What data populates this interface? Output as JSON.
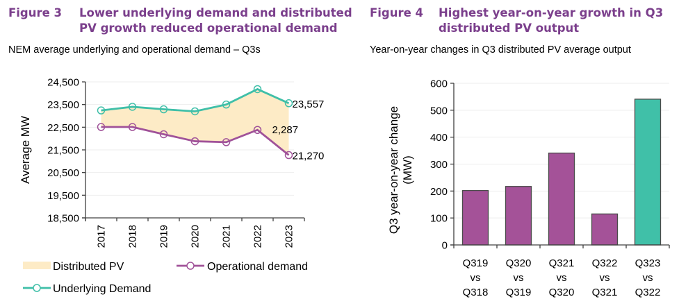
{
  "figures": [
    {
      "number": "Figure 3",
      "title": "Lower underlying demand and distributed PV growth reduced operational demand",
      "subtitle": "NEM average underlying and operational demand – Q3s"
    },
    {
      "number": "Figure 4",
      "title": "Highest year-on-year growth in Q3 distributed PV output",
      "subtitle": "Year-on-year changes in Q3 distributed PV average output"
    }
  ],
  "colors": {
    "title_purple": "#7b3f8c",
    "operational": "#a05299",
    "underlying": "#3fbfa8",
    "distributed_pv_fill": "#fdebc6",
    "bar_purple": "#a45298",
    "bar_teal": "#40c0a8",
    "axis": "#404040",
    "grid": "#eeeeee"
  },
  "chart_data": [
    {
      "type": "line",
      "title": "NEM average underlying and operational demand – Q3s",
      "xlabel": "",
      "ylabel": "Average MW",
      "x": [
        "2017",
        "2018",
        "2019",
        "2020",
        "2021",
        "2022",
        "2023"
      ],
      "ylim": [
        18500,
        24500
      ],
      "yticks": [
        18500,
        19500,
        20500,
        21500,
        22500,
        23500,
        24500
      ],
      "ytick_labels": [
        "18,500",
        "19,500",
        "20,500",
        "21,500",
        "22,500",
        "23,500",
        "24,500"
      ],
      "grid": true,
      "series": [
        {
          "name": "Underlying Demand",
          "values": [
            23240,
            23400,
            23290,
            23200,
            23500,
            24180,
            23557
          ]
        },
        {
          "name": "Operational demand",
          "values": [
            22510,
            22510,
            22190,
            21880,
            21840,
            22380,
            21270
          ]
        }
      ],
      "area": {
        "name": "Distributed PV",
        "between": [
          "Operational demand",
          "Underlying Demand"
        ]
      },
      "annotations": [
        {
          "text": "23,557",
          "target": "Underlying Demand 2023"
        },
        {
          "text": "2,287",
          "target": "Distributed PV 2023"
        },
        {
          "text": "21,270",
          "target": "Operational demand 2023"
        }
      ],
      "legend": {
        "placement": "bottom",
        "items": [
          "Distributed PV",
          "Operational demand",
          "Underlying Demand"
        ]
      }
    },
    {
      "type": "bar",
      "title": "Year-on-year changes in Q3 distributed PV average output",
      "xlabel": "",
      "ylabel": "Q3 year-on-year change (MW)",
      "ylabel_lines": [
        "Q3 year-on-year change",
        "(MW)"
      ],
      "categories": [
        "Q319 vs Q318",
        "Q320 vs Q319",
        "Q321 vs Q320",
        "Q322 vs Q321",
        "Q323 vs Q322"
      ],
      "category_lines": [
        [
          "Q319",
          "vs",
          "Q318"
        ],
        [
          "Q320",
          "vs",
          "Q319"
        ],
        [
          "Q321",
          "vs",
          "Q320"
        ],
        [
          "Q322",
          "vs",
          "Q321"
        ],
        [
          "Q323",
          "vs",
          "Q322"
        ]
      ],
      "values": [
        202,
        217,
        341,
        115,
        541
      ],
      "highlight": [
        false,
        false,
        false,
        false,
        true
      ],
      "ylim": [
        0,
        600
      ],
      "yticks": [
        0,
        100,
        200,
        300,
        400,
        500,
        600
      ],
      "grid": true
    }
  ]
}
